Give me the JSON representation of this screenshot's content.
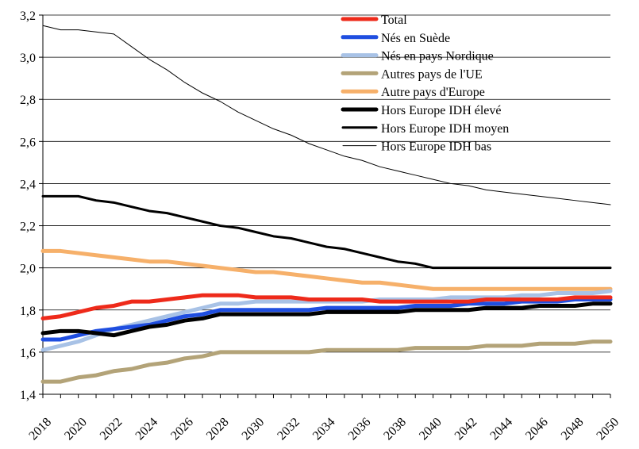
{
  "chart_data": {
    "type": "line",
    "title": "",
    "xlabel": "",
    "ylabel": "",
    "x": [
      2018,
      2019,
      2020,
      2021,
      2022,
      2023,
      2024,
      2025,
      2026,
      2027,
      2028,
      2029,
      2030,
      2031,
      2032,
      2033,
      2034,
      2035,
      2036,
      2037,
      2038,
      2039,
      2040,
      2041,
      2042,
      2043,
      2044,
      2045,
      2046,
      2047,
      2048,
      2049,
      2050
    ],
    "xticks": [
      "2018",
      "2020",
      "2022",
      "2024",
      "2026",
      "2028",
      "2030",
      "2032",
      "2034",
      "2036",
      "2038",
      "2040",
      "2042",
      "2044",
      "2046",
      "2048",
      "2050"
    ],
    "ylim": [
      1.4,
      3.2
    ],
    "yticks": [
      "1,4",
      "1,6",
      "1,8",
      "2,0",
      "2,2",
      "2,4",
      "2,6",
      "2,8",
      "3,0",
      "3,2"
    ],
    "grid": "horizontal",
    "legend_position": "top-right",
    "series": [
      {
        "name": "Total",
        "color": "#ee2a1a",
        "width": 5,
        "values": [
          1.76,
          1.77,
          1.79,
          1.81,
          1.82,
          1.84,
          1.84,
          1.85,
          1.86,
          1.87,
          1.87,
          1.87,
          1.86,
          1.86,
          1.86,
          1.85,
          1.85,
          1.85,
          1.85,
          1.84,
          1.84,
          1.84,
          1.84,
          1.84,
          1.84,
          1.85,
          1.85,
          1.85,
          1.85,
          1.85,
          1.86,
          1.86,
          1.86
        ]
      },
      {
        "name": "Nés en Suède",
        "color": "#1f4ee0",
        "width": 5,
        "values": [
          1.66,
          1.66,
          1.68,
          1.7,
          1.71,
          1.72,
          1.73,
          1.75,
          1.77,
          1.78,
          1.8,
          1.8,
          1.8,
          1.8,
          1.8,
          1.8,
          1.81,
          1.81,
          1.81,
          1.81,
          1.81,
          1.82,
          1.82,
          1.82,
          1.83,
          1.83,
          1.83,
          1.84,
          1.84,
          1.84,
          1.85,
          1.85,
          1.85
        ]
      },
      {
        "name": "Nés en pays Nordique",
        "color": "#a8c2e6",
        "width": 5,
        "values": [
          1.61,
          1.63,
          1.65,
          1.68,
          1.71,
          1.73,
          1.75,
          1.77,
          1.79,
          1.81,
          1.83,
          1.83,
          1.84,
          1.84,
          1.84,
          1.84,
          1.84,
          1.84,
          1.84,
          1.85,
          1.85,
          1.85,
          1.85,
          1.86,
          1.86,
          1.86,
          1.86,
          1.87,
          1.87,
          1.88,
          1.88,
          1.88,
          1.89
        ]
      },
      {
        "name": "Autres pays de l'UE",
        "color": "#b3a378",
        "width": 5,
        "values": [
          1.46,
          1.46,
          1.48,
          1.49,
          1.51,
          1.52,
          1.54,
          1.55,
          1.57,
          1.58,
          1.6,
          1.6,
          1.6,
          1.6,
          1.6,
          1.6,
          1.61,
          1.61,
          1.61,
          1.61,
          1.61,
          1.62,
          1.62,
          1.62,
          1.62,
          1.63,
          1.63,
          1.63,
          1.64,
          1.64,
          1.64,
          1.65,
          1.65
        ]
      },
      {
        "name": "Autre pays d'Europe",
        "color": "#f6b06a",
        "width": 5,
        "values": [
          2.08,
          2.08,
          2.07,
          2.06,
          2.05,
          2.04,
          2.03,
          2.03,
          2.02,
          2.01,
          2.0,
          1.99,
          1.98,
          1.98,
          1.97,
          1.96,
          1.95,
          1.94,
          1.93,
          1.93,
          1.92,
          1.91,
          1.9,
          1.9,
          1.9,
          1.9,
          1.9,
          1.9,
          1.9,
          1.9,
          1.9,
          1.9,
          1.9
        ]
      },
      {
        "name": "Hors Europe IDH élevé",
        "color": "#000000",
        "width": 5,
        "values": [
          1.69,
          1.7,
          1.7,
          1.69,
          1.68,
          1.7,
          1.72,
          1.73,
          1.75,
          1.76,
          1.78,
          1.78,
          1.78,
          1.78,
          1.78,
          1.78,
          1.79,
          1.79,
          1.79,
          1.79,
          1.79,
          1.8,
          1.8,
          1.8,
          1.8,
          1.81,
          1.81,
          1.81,
          1.82,
          1.82,
          1.82,
          1.83,
          1.83
        ]
      },
      {
        "name": "Hors Europe IDH moyen",
        "color": "#000000",
        "width": 3,
        "values": [
          2.34,
          2.34,
          2.34,
          2.32,
          2.31,
          2.29,
          2.27,
          2.26,
          2.24,
          2.22,
          2.2,
          2.19,
          2.17,
          2.15,
          2.14,
          2.12,
          2.1,
          2.09,
          2.07,
          2.05,
          2.03,
          2.02,
          2.0,
          2.0,
          2.0,
          2.0,
          2.0,
          2.0,
          2.0,
          2.0,
          2.0,
          2.0,
          2.0
        ]
      },
      {
        "name": "Hors Europe IDH bas",
        "color": "#000000",
        "width": 1,
        "values": [
          3.15,
          3.13,
          3.13,
          3.12,
          3.11,
          3.05,
          2.99,
          2.94,
          2.88,
          2.83,
          2.79,
          2.74,
          2.7,
          2.66,
          2.63,
          2.59,
          2.56,
          2.53,
          2.51,
          2.48,
          2.46,
          2.44,
          2.42,
          2.4,
          2.39,
          2.37,
          2.36,
          2.35,
          2.34,
          2.33,
          2.32,
          2.31,
          2.3
        ]
      }
    ]
  }
}
